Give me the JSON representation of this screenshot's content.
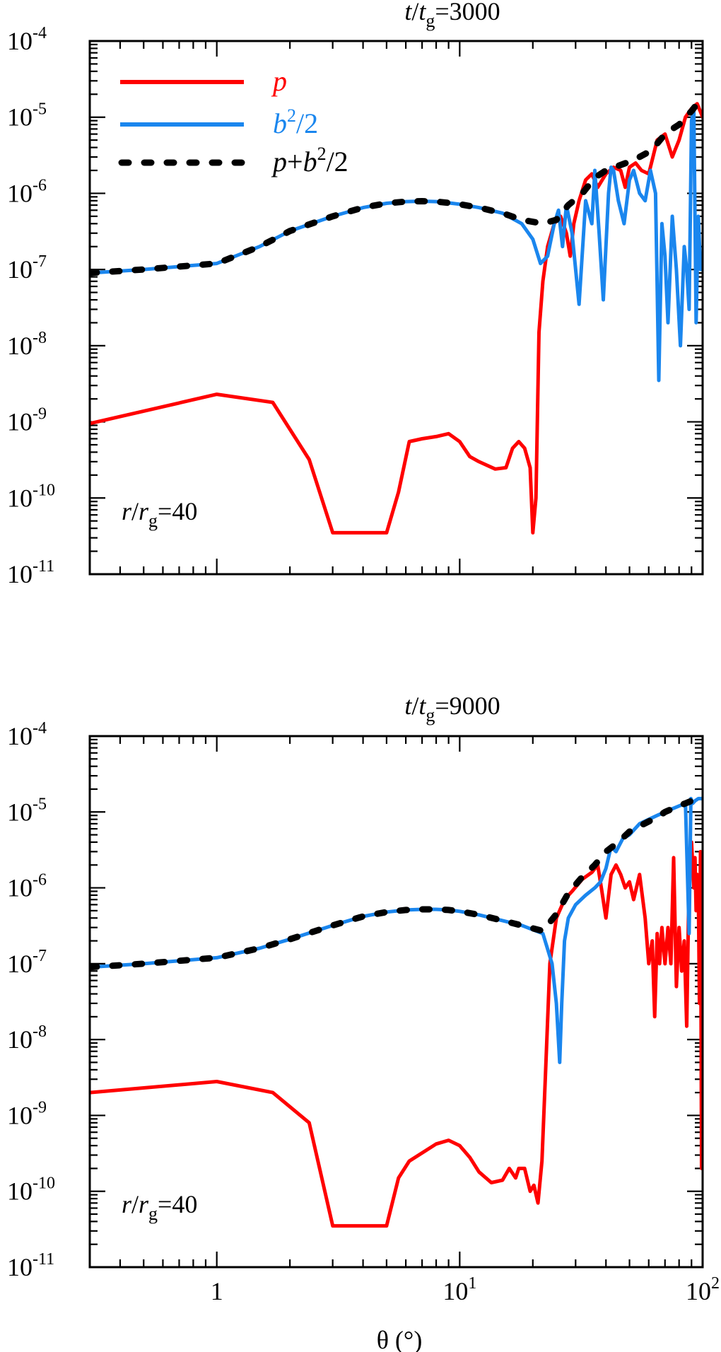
{
  "chart_data": [
    {
      "type": "line",
      "title_parts": {
        "t": "t",
        "slash": "/",
        "tg": "t",
        "g": "g",
        "eq": "=3000"
      },
      "annotation": {
        "r": "r",
        "slash": "/",
        "rg": "r",
        "g": "g",
        "eq": "=40"
      },
      "xscale": "log",
      "yscale": "log",
      "xlim": [
        0.3,
        100
      ],
      "ylim": [
        1e-11,
        0.0001
      ],
      "legend_placement": "top-left",
      "series": [
        {
          "name": "p",
          "color": "#ff0000",
          "x": [
            0.3,
            1.0,
            1.7,
            2.4,
            3.0,
            5.0,
            5.6,
            6.2,
            7.0,
            8.0,
            9.0,
            10.0,
            11.0,
            12.0,
            14.0,
            15.5,
            16.5,
            17.5,
            18.5,
            19.5,
            20.0,
            20.6,
            21.2,
            22.0,
            23.0,
            24.5,
            26.0,
            27.5,
            28.5,
            29.5,
            31.0,
            33.0,
            35.0,
            37.0,
            40.0,
            43.0,
            46.0,
            48.0,
            50.0,
            53.0,
            56.0,
            60.0,
            65.0,
            70.0,
            75.0,
            80.0,
            85.0,
            90.0,
            95.0,
            100.0
          ],
          "y": [
            9.5e-10,
            2.3e-09,
            1.8e-09,
            3.2e-10,
            3.5e-11,
            3.5e-11,
            1.2e-10,
            5.5e-10,
            6e-10,
            6.4e-10,
            7e-10,
            5.5e-10,
            3.5e-10,
            3e-10,
            2.4e-10,
            2.5e-10,
            4.5e-10,
            5.5e-10,
            4.5e-10,
            2.5e-10,
            3.5e-11,
            1e-10,
            1.5e-08,
            7e-08,
            2e-07,
            4e-07,
            5e-07,
            3e-07,
            1.5e-07,
            4e-07,
            8e-07,
            1.5e-06,
            1.8e-06,
            1.2e-06,
            1.8e-06,
            2.2e-06,
            2e-06,
            1.2e-06,
            2.2e-06,
            2.5e-06,
            2e-06,
            1.8e-06,
            5e-06,
            6e-06,
            3e-06,
            5e-06,
            1e-05,
            1.3e-05,
            1.5e-05,
            1e-05
          ]
        },
        {
          "name": "b²/2",
          "color": "#1a86ee",
          "x": [
            0.3,
            0.5,
            1.0,
            1.5,
            2.0,
            3.0,
            4.0,
            5.0,
            6.0,
            7.0,
            8.0,
            9.0,
            10.0,
            12.0,
            15.0,
            18.0,
            20.0,
            21.5,
            23.0,
            24.5,
            25.5,
            26.5,
            27.5,
            29.0,
            31.0,
            33.0,
            35.0,
            36.0,
            37.5,
            39.0,
            41.0,
            42.0,
            43.0,
            45.0,
            47.5,
            50.0,
            52.0,
            55.0,
            58.0,
            61.0,
            64.0,
            66.0,
            68.0,
            70.0,
            72.0,
            75.0,
            78.0,
            81.0,
            84.0,
            86.0,
            88.0,
            90.0,
            92.0,
            94.0,
            96.0,
            98.0,
            100.0
          ],
          "y": [
            9e-08,
            1e-07,
            1.2e-07,
            2e-07,
            3.2e-07,
            5e-07,
            6.5e-07,
            7.4e-07,
            7.8e-07,
            7.9e-07,
            7.8e-07,
            7.5e-07,
            7.2e-07,
            6.5e-07,
            5.5e-07,
            4e-07,
            2.5e-07,
            1.2e-07,
            1.5e-07,
            4e-07,
            6e-07,
            2e-07,
            7e-07,
            3e-07,
            3.5e-08,
            8e-07,
            4e-07,
            2e-06,
            3e-07,
            4e-08,
            1e-06,
            2.2e-06,
            2e-06,
            8e-07,
            4e-07,
            1.5e-06,
            2e-06,
            1e-06,
            8e-07,
            2e-06,
            1e-06,
            3.5e-09,
            4e-07,
            1.5e-07,
            2e-08,
            5e-07,
            1e-07,
            1e-08,
            2e-07,
            1e-07,
            3e-08,
            9e-06,
            1.2e-05,
            2e-08,
            5e-07,
            1e-07,
            1e-07
          ]
        },
        {
          "name": "p+b²/2",
          "color": "#000000",
          "x": [
            0.3,
            0.5,
            1.0,
            1.5,
            2.0,
            3.0,
            4.0,
            5.0,
            6.0,
            7.0,
            8.0,
            9.0,
            10.0,
            12.0,
            15.0,
            18.0,
            22.0,
            25.0,
            28.0,
            32.0,
            36.0,
            40.0,
            45.0,
            50.0,
            55.0,
            60.0,
            65.0,
            70.0,
            75.0,
            80.0,
            85.0,
            90.0,
            95.0,
            100.0
          ],
          "y": [
            9e-08,
            1e-07,
            1.2e-07,
            2e-07,
            3.2e-07,
            5e-07,
            6.5e-07,
            7.4e-07,
            7.8e-07,
            7.9e-07,
            7.8e-07,
            7.5e-07,
            7.2e-07,
            6.5e-07,
            5.5e-07,
            4.5e-07,
            4e-07,
            4.5e-07,
            7e-07,
            1e-06,
            1.6e-06,
            2e-06,
            2.3e-06,
            2.6e-06,
            3e-06,
            3.5e-06,
            4.5e-06,
            6e-06,
            7e-06,
            8e-06,
            1e-05,
            1.2e-05,
            1.5e-05,
            1.4e-05
          ]
        }
      ]
    },
    {
      "type": "line",
      "title_parts": {
        "t": "t",
        "slash": "/",
        "tg": "t",
        "g": "g",
        "eq": "=9000"
      },
      "annotation": {
        "r": "r",
        "slash": "/",
        "rg": "r",
        "g": "g",
        "eq": "=40"
      },
      "xlabel": "θ (°)",
      "xscale": "log",
      "yscale": "log",
      "xlim": [
        0.3,
        100
      ],
      "ylim": [
        1e-11,
        0.0001
      ],
      "series": [
        {
          "name": "p",
          "color": "#ff0000",
          "x": [
            0.3,
            1.0,
            1.7,
            2.4,
            3.0,
            5.0,
            5.6,
            6.2,
            7.0,
            8.0,
            9.0,
            10.0,
            11.0,
            12.0,
            13.5,
            15.0,
            16.0,
            17.0,
            17.5,
            18.5,
            19.5,
            20.2,
            21.0,
            21.8,
            22.5,
            23.5,
            25.0,
            27.0,
            29.0,
            32.0,
            35.0,
            37.0,
            38.5,
            40.0,
            42.0,
            44.0,
            46.0,
            48.0,
            50.0,
            52.0,
            55.0,
            58.0,
            60.0,
            62.0,
            63.5,
            65.0,
            66.5,
            68.0,
            70.0,
            72.0,
            74.0,
            76.0,
            78.0,
            80.0,
            82.0,
            84.0,
            86.0,
            88.0,
            90.0,
            92.0,
            93.0,
            94.0,
            95.0,
            96.0,
            97.0,
            98.0,
            99.0,
            100.0
          ],
          "y": [
            2e-09,
            2.8e-09,
            2e-09,
            8e-10,
            3.5e-11,
            3.5e-11,
            1.5e-10,
            2.5e-10,
            3.2e-10,
            4.2e-10,
            4.7e-10,
            4e-10,
            2.8e-10,
            1.8e-10,
            1.3e-10,
            1.4e-10,
            2e-10,
            1.5e-10,
            2e-10,
            2e-10,
            1e-10,
            1.2e-10,
            7e-11,
            2.5e-10,
            3e-09,
            1e-07,
            4e-07,
            7e-07,
            9e-07,
            1.3e-06,
            1.6e-06,
            2e-06,
            9e-07,
            4e-07,
            1.5e-06,
            2e-06,
            1.5e-06,
            1e-06,
            1.2e-06,
            7e-07,
            1.5e-06,
            4e-07,
            1e-07,
            2e-07,
            2e-08,
            2.5e-07,
            1e-07,
            3e-07,
            1e-07,
            3e-07,
            1e-07,
            2.5e-06,
            5e-08,
            3e-07,
            8e-08,
            2e-07,
            1.5e-08,
            1.5e-06,
            4e-06,
            1e-06,
            2.5e-06,
            5e-07,
            1.5e-06,
            1e-06,
            3e-08,
            3e-06,
            2e-10,
            1e-07
          ]
        },
        {
          "name": "b²/2",
          "color": "#1a86ee",
          "x": [
            0.3,
            0.5,
            1.0,
            1.5,
            2.0,
            3.0,
            4.0,
            5.0,
            6.0,
            7.0,
            8.0,
            9.0,
            10.0,
            12.0,
            15.0,
            18.0,
            22.0,
            24.0,
            25.0,
            25.8,
            26.3,
            27.0,
            28.0,
            30.0,
            33.0,
            36.0,
            38.0,
            40.0,
            42.0,
            44.0,
            47.0,
            50.0,
            55.0,
            60.0,
            65.0,
            70.0,
            75.0,
            80.0,
            85.0,
            88.0,
            89.5,
            91.0,
            93.0,
            96.0,
            100.0
          ],
          "y": [
            9e-08,
            1e-07,
            1.2e-07,
            1.6e-07,
            2.1e-07,
            3.2e-07,
            4.2e-07,
            4.8e-07,
            5.1e-07,
            5.2e-07,
            5.2e-07,
            5.1e-07,
            4.9e-07,
            4.4e-07,
            3.7e-07,
            3.2e-07,
            2.5e-07,
            1e-07,
            3e-08,
            5e-09,
            3e-08,
            2e-07,
            4e-07,
            6e-07,
            8e-07,
            1e-06,
            1.2e-06,
            1.8e-06,
            3.5e-06,
            3e-06,
            4.5e-06,
            5e-06,
            7e-06,
            8e-06,
            9e-06,
            1e-05,
            1.1e-05,
            1.2e-05,
            1.3e-05,
            2.5e-07,
            1.5e-05,
            1.3e-05,
            1.4e-05,
            1.5e-05,
            1.5e-05
          ]
        },
        {
          "name": "p+b²/2",
          "color": "#000000",
          "x": [
            0.3,
            0.5,
            1.0,
            1.5,
            2.0,
            3.0,
            4.0,
            5.0,
            6.0,
            7.0,
            8.0,
            9.0,
            10.0,
            12.0,
            15.0,
            18.0,
            22.0,
            25.0,
            28.0,
            32.0,
            36.0,
            40.0,
            45.0,
            50.0,
            55.0,
            60.0,
            65.0,
            70.0,
            75.0,
            80.0,
            85.0,
            90.0,
            95.0,
            100.0
          ],
          "y": [
            9e-08,
            1e-07,
            1.2e-07,
            1.6e-07,
            2.1e-07,
            3.2e-07,
            4.2e-07,
            4.8e-07,
            5.1e-07,
            5.2e-07,
            5.2e-07,
            5.1e-07,
            4.9e-07,
            4.4e-07,
            3.7e-07,
            3.2e-07,
            2.7e-07,
            4.5e-07,
            8.5e-07,
            1.4e-06,
            2e-06,
            3e-06,
            4e-06,
            5.5e-06,
            6.5e-06,
            7.5e-06,
            8.5e-06,
            1e-05,
            1.1e-05,
            1.2e-05,
            1.3e-05,
            1.4e-05,
            1.5e-05,
            1.5e-05
          ]
        }
      ]
    }
  ],
  "y_tick_labels": [
    {
      "base": "10",
      "exp": "-4"
    },
    {
      "base": "10",
      "exp": "-5"
    },
    {
      "base": "10",
      "exp": "-6"
    },
    {
      "base": "10",
      "exp": "-7"
    },
    {
      "base": "10",
      "exp": "-8"
    },
    {
      "base": "10",
      "exp": "-9"
    },
    {
      "base": "10",
      "exp": "-10"
    },
    {
      "base": "10",
      "exp": "-11"
    }
  ],
  "x_tick_labels": [
    {
      "base": "1",
      "exp": ""
    },
    {
      "base": "10",
      "exp": "1"
    },
    {
      "base": "10",
      "exp": "2"
    }
  ],
  "legend": [
    {
      "symbol": "p",
      "label": "p",
      "color": "#ff0000"
    },
    {
      "symbol": "b",
      "sup": "2",
      "rest": "/2",
      "color": "#1a86ee"
    },
    {
      "symbol": "p",
      "plus": "+",
      "symbol2": "b",
      "sup": "2",
      "rest": "/2",
      "color": "#000000"
    }
  ]
}
